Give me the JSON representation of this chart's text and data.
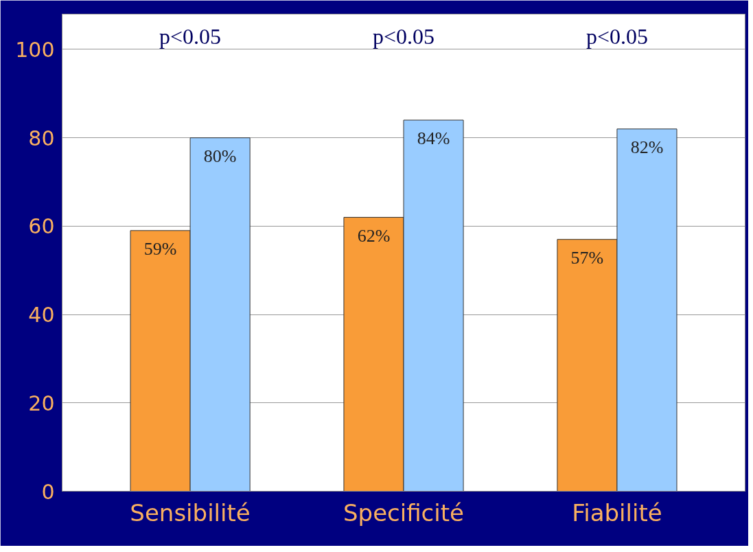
{
  "chart_data": {
    "type": "bar",
    "categories": [
      "Sensibilité",
      "Specificité",
      "Fiabilité"
    ],
    "series": [
      {
        "color": "#f99c38",
        "values": [
          59,
          62,
          57
        ],
        "value_labels": [
          "59%",
          "62%",
          "57%"
        ]
      },
      {
        "color": "#99ccff",
        "values": [
          80,
          84,
          82
        ],
        "value_labels": [
          "80%",
          "84%",
          "82%"
        ]
      }
    ],
    "ylim": [
      0,
      108
    ],
    "yticks": [
      0,
      20,
      40,
      60,
      80,
      100
    ],
    "grid": "y",
    "annotations": [
      "p<0.05",
      "p<0.05",
      "p<0.05"
    ]
  }
}
